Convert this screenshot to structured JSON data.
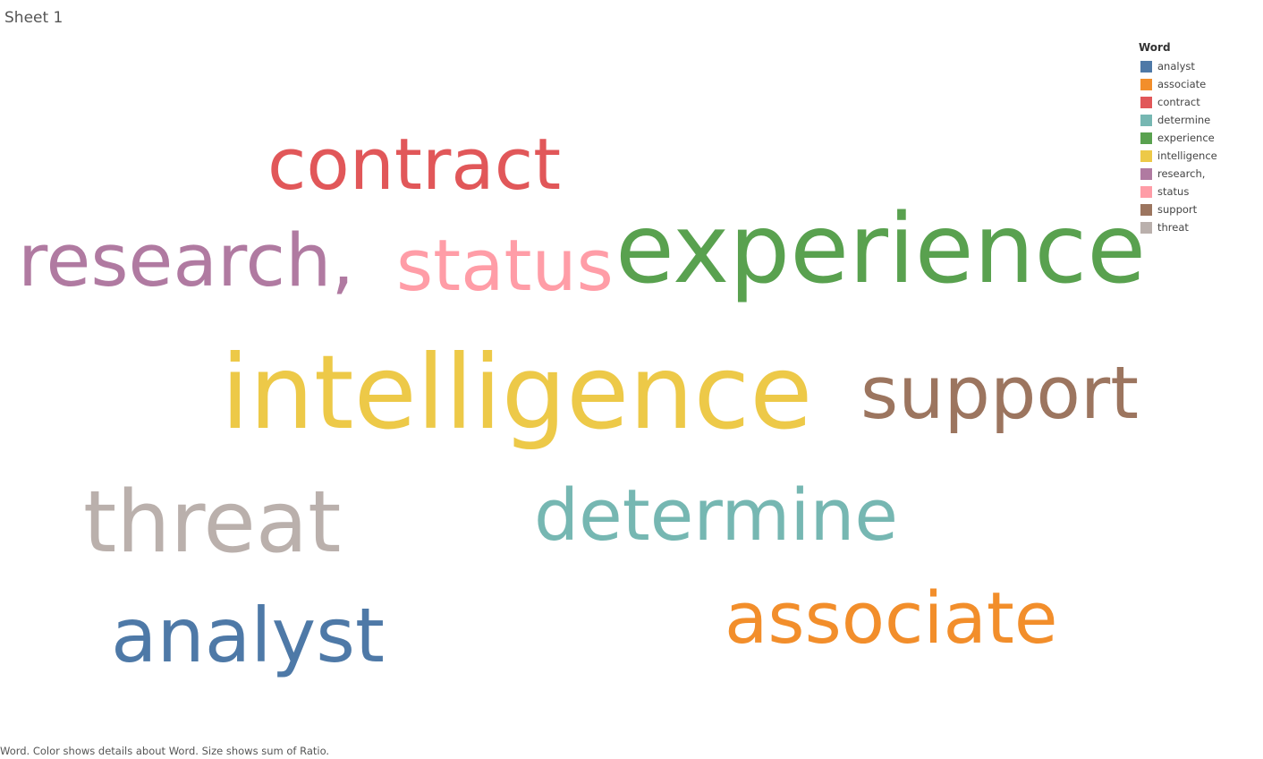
{
  "sheet": {
    "title": "Sheet 1"
  },
  "legend": {
    "title": "Word"
  },
  "footer": {
    "caption": "Word.  Color shows details about Word.  Size shows sum of Ratio."
  },
  "chart_data": {
    "type": "wordcloud",
    "color_field": "Word",
    "size_field": "sum of Ratio",
    "words": [
      {
        "word": "analyst",
        "color": "#4e79a7",
        "relative_size": 0.74
      },
      {
        "word": "associate",
        "color": "#f28e2b",
        "relative_size": 0.69
      },
      {
        "word": "contract",
        "color": "#e15759",
        "relative_size": 0.69
      },
      {
        "word": "determine",
        "color": "#76b7b2",
        "relative_size": 0.69
      },
      {
        "word": "experience",
        "color": "#59a14f",
        "relative_size": 0.94
      },
      {
        "word": "intelligence",
        "color": "#edc948",
        "relative_size": 1.0
      },
      {
        "word": "research,",
        "color": "#b07aa1",
        "relative_size": 0.71
      },
      {
        "word": "status",
        "color": "#ff9da7",
        "relative_size": 0.69
      },
      {
        "word": "support",
        "color": "#9c755f",
        "relative_size": 0.71
      },
      {
        "word": "threat",
        "color": "#bab0ac",
        "relative_size": 0.83
      }
    ]
  }
}
